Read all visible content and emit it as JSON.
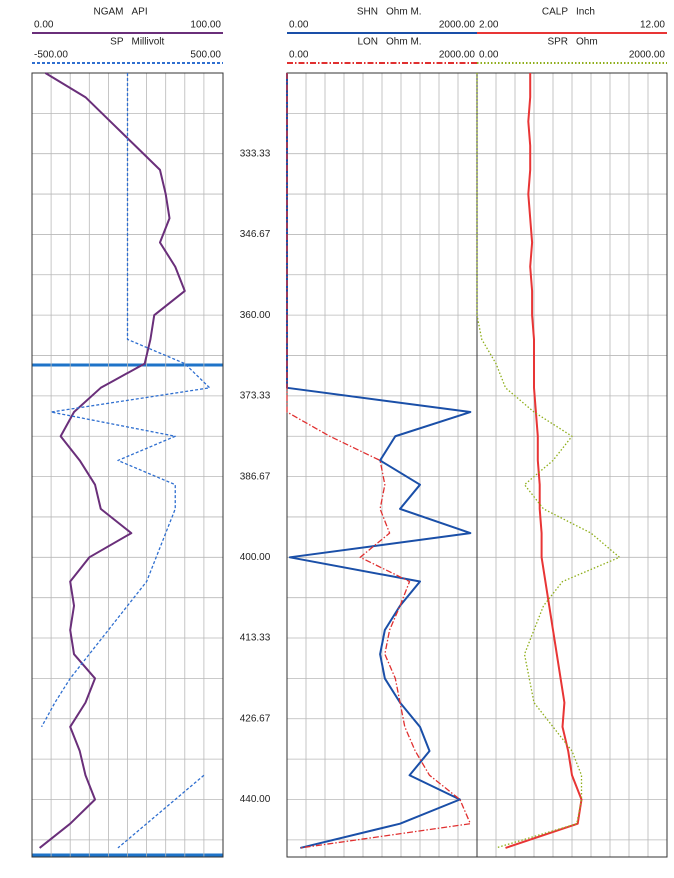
{
  "chart_data": {
    "type": "well-log",
    "ylim": [
      320,
      449.5
    ],
    "yticks": [
      333.33,
      346.67,
      {
        "value": 360,
        "label": "360.00"
      },
      373.33,
      386.67,
      {
        "value": 400,
        "label": "400.00"
      },
      413.33,
      426.67,
      {
        "value": 440,
        "label": "440.00"
      }
    ],
    "yticks_minor": [
      326.67,
      340,
      353.33,
      366.67,
      380,
      393.33,
      406.67,
      420,
      433.33,
      446.67
    ],
    "depth": [
      320,
      324,
      328,
      332,
      336,
      340,
      344,
      348,
      352,
      356,
      360,
      364,
      368,
      372,
      376,
      380,
      384,
      388,
      392,
      396,
      400,
      404,
      408,
      412,
      416,
      420,
      424,
      428,
      432,
      436,
      440,
      444,
      448
    ],
    "tracks": [
      {
        "curves": [
          {
            "name": "NGAM",
            "unit": "API",
            "color": "#6a2f7a",
            "dash": "solid",
            "scale": [
              {
                "value": 0,
                "label": "0.00"
              },
              {
                "value": 100,
                "label": "100.00"
              }
            ],
            "values": [
              7,
              28,
              41,
              54,
              67,
              70,
              72,
              67,
              75,
              80,
              64,
              62,
              59,
              36,
              22,
              15,
              25,
              33,
              36,
              52,
              30,
              20,
              22,
              20,
              22,
              33,
              28,
              20,
              25,
              28,
              33,
              20,
              4
            ]
          },
          {
            "name": "SP",
            "unit": "Millivolt",
            "color": "#2f6fd0",
            "dash": "dashed",
            "scale": [
              {
                "value": -500,
                "label": "-500.00"
              },
              {
                "value": 500,
                "label": "500.00"
              }
            ],
            "values": [
              0,
              0,
              0,
              0,
              0,
              0,
              0,
              0,
              0,
              0,
              0,
              0,
              300,
              430,
              -400,
              250,
              -50,
              250,
              250,
              200,
              150,
              100,
              0,
              -100,
              -200,
              -300,
              -380,
              -450,
              null,
              400,
              250,
              100,
              -50
            ]
          }
        ]
      },
      {
        "curves": [
          {
            "name": "SHN",
            "unit": "Ohm M.",
            "color": "#1a4fa8",
            "dash": "solid",
            "scale": [
              {
                "value": 0,
                "label": "0.00"
              },
              {
                "value": 2000,
                "label": "2000.00"
              }
            ],
            "values": [
              0,
              0,
              0,
              0,
              0,
              0,
              0,
              0,
              0,
              0,
              0,
              0,
              0,
              0,
              1930,
              1140,
              980,
              1400,
              1190,
              1930,
              30,
              1400,
              1190,
              1030,
              980,
              1030,
              1190,
              1400,
              1500,
              1290,
              1820,
              1190,
              140
            ]
          },
          {
            "name": "LON",
            "unit": "Ohm M.",
            "color": "#e03030",
            "dash": "dashdot",
            "scale": [
              {
                "value": 0,
                "label": "0.00"
              },
              {
                "value": 2000,
                "label": "2000.00"
              }
            ],
            "values": [
              0,
              0,
              0,
              0,
              0,
              0,
              0,
              0,
              0,
              0,
              0,
              0,
              0,
              0,
              0,
              450,
              980,
              1030,
              980,
              1080,
              770,
              1290,
              1190,
              1080,
              1030,
              1140,
              1190,
              1240,
              1350,
              1500,
              1820,
              1930,
              140
            ]
          }
        ]
      },
      {
        "curves": [
          {
            "name": "CALP",
            "unit": "Inch",
            "color": "#e83535",
            "dash": "solid",
            "scale": [
              {
                "value": 2,
                "label": "2.00"
              },
              {
                "value": 12,
                "label": "12.00"
              }
            ],
            "values": [
              4.8,
              4.8,
              4.7,
              4.8,
              4.8,
              4.7,
              4.8,
              4.9,
              4.8,
              4.9,
              4.9,
              5.0,
              5.0,
              5.0,
              5.1,
              5.2,
              5.2,
              5.3,
              5.3,
              5.4,
              5.4,
              5.6,
              5.8,
              6.0,
              6.2,
              6.4,
              6.6,
              6.5,
              6.8,
              7.0,
              7.5,
              7.3,
              3.5
            ]
          },
          {
            "name": "SPR",
            "unit": "Ohm",
            "color": "#8fae1b",
            "dash": "dotted",
            "scale": [
              {
                "value": 0,
                "label": "0.00"
              },
              {
                "value": 2000,
                "label": "2000.00"
              }
            ],
            "values": [
              0,
              0,
              0,
              0,
              0,
              0,
              0,
              0,
              0,
              0,
              0,
              50,
              200,
              300,
              600,
              1000,
              800,
              500,
              700,
              1200,
              1500,
              900,
              700,
              600,
              500,
              550,
              600,
              800,
              1000,
              1100,
              1100,
              1050,
              200
            ]
          }
        ]
      }
    ]
  }
}
